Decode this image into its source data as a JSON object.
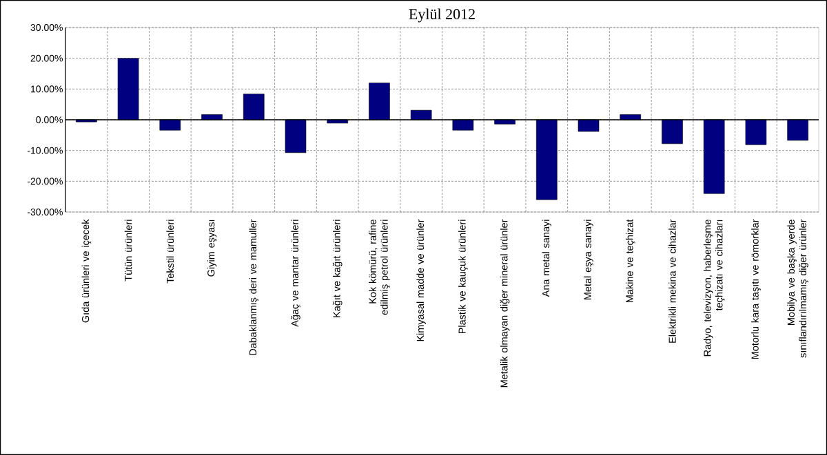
{
  "chart_data": {
    "type": "bar",
    "title": "Eylül 2012",
    "categories": [
      "Gıda ürünleri ve içecek",
      "Tütün ürünleri",
      "Tekstil ürünleri",
      "Giyim eşyası",
      "Dabaklanmış deri ve mamuller",
      "Ağaç ve mantar ürünleri",
      "Kağıt ve kağıt ürünleri",
      "Kok kömürü, rafine edilmiş petrol ürünleri",
      "Kimyasal madde ve ürünler",
      "Plastik ve kauçuk ürünleri",
      "Metalik olmayan diğer mineral ürünler",
      "Ana metal sanayi",
      "Metal eşya sanayi",
      "Makine ve teçhizat",
      "Elektrikli mekina ve cihazlar",
      "Radyo, televizyon, haberleşme teçhizatı ve cihazları",
      "Motorlu kara taşıtı ve römorklar",
      "Mobilya ve başka yerde sınıflandırılmamış diğer ürünler"
    ],
    "values": [
      -0.7,
      20,
      -3.4,
      1.7,
      8.4,
      -10.7,
      -1.1,
      12,
      3.1,
      -3.4,
      -1.4,
      -26,
      -3.8,
      1.7,
      -7.8,
      -24,
      -8.1,
      -6.7
    ],
    "color": "#000080",
    "ylim": [
      -30,
      30
    ],
    "yticks": [
      {
        "value": -30,
        "label": "-30.00%"
      },
      {
        "value": -20,
        "label": "-20.00%"
      },
      {
        "value": -10,
        "label": "-10.00%"
      },
      {
        "value": 0,
        "label": "0.00%"
      },
      {
        "value": 10,
        "label": "10.00%"
      },
      {
        "value": 20,
        "label": "20.00%"
      },
      {
        "value": 30,
        "label": "30.00%"
      }
    ],
    "grid": true
  }
}
